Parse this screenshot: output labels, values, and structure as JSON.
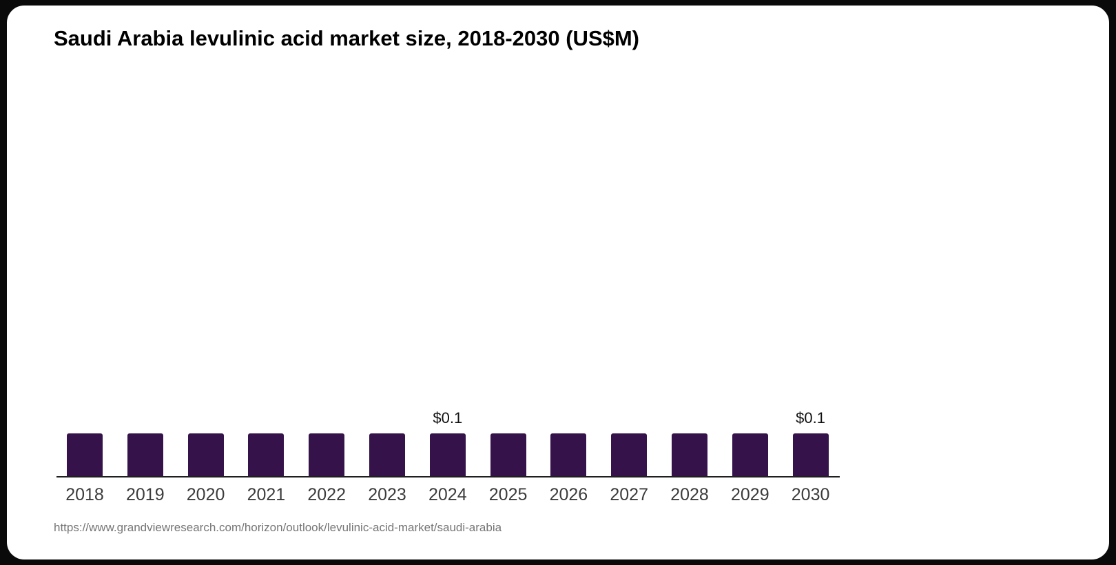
{
  "title": "Saudi Arabia levulinic acid market size, 2018-2030 (US$M)",
  "source_url": "https://www.grandviewresearch.com/horizon/outlook/levulinic-acid-market/saudi-arabia",
  "colors": {
    "bar": "#35124A",
    "axis": "#1f1f1f",
    "title_text": "#000000",
    "year_label_text": "#3c3c3c",
    "value_label_text": "#111111",
    "source_text": "#757575",
    "card_background": "#ffffff",
    "page_background": "#0a0a0a"
  },
  "chart_data": {
    "type": "bar",
    "title": "Saudi Arabia levulinic acid market size, 2018-2030 (US$M)",
    "categories": [
      "2018",
      "2019",
      "2020",
      "2021",
      "2022",
      "2023",
      "2024",
      "2025",
      "2026",
      "2027",
      "2028",
      "2029",
      "2030"
    ],
    "values": [
      0.1,
      0.1,
      0.1,
      0.1,
      0.1,
      0.1,
      0.1,
      0.1,
      0.1,
      0.1,
      0.1,
      0.1,
      0.1
    ],
    "data_labels": {
      "2024": "$0.1",
      "2030": "$0.1"
    },
    "xlabel": "",
    "ylabel": "",
    "unit": "US$M",
    "grid": false,
    "legend": false,
    "y_axis_visible": false,
    "x_axis_line_visible": true,
    "bar_color": "#35124A"
  }
}
